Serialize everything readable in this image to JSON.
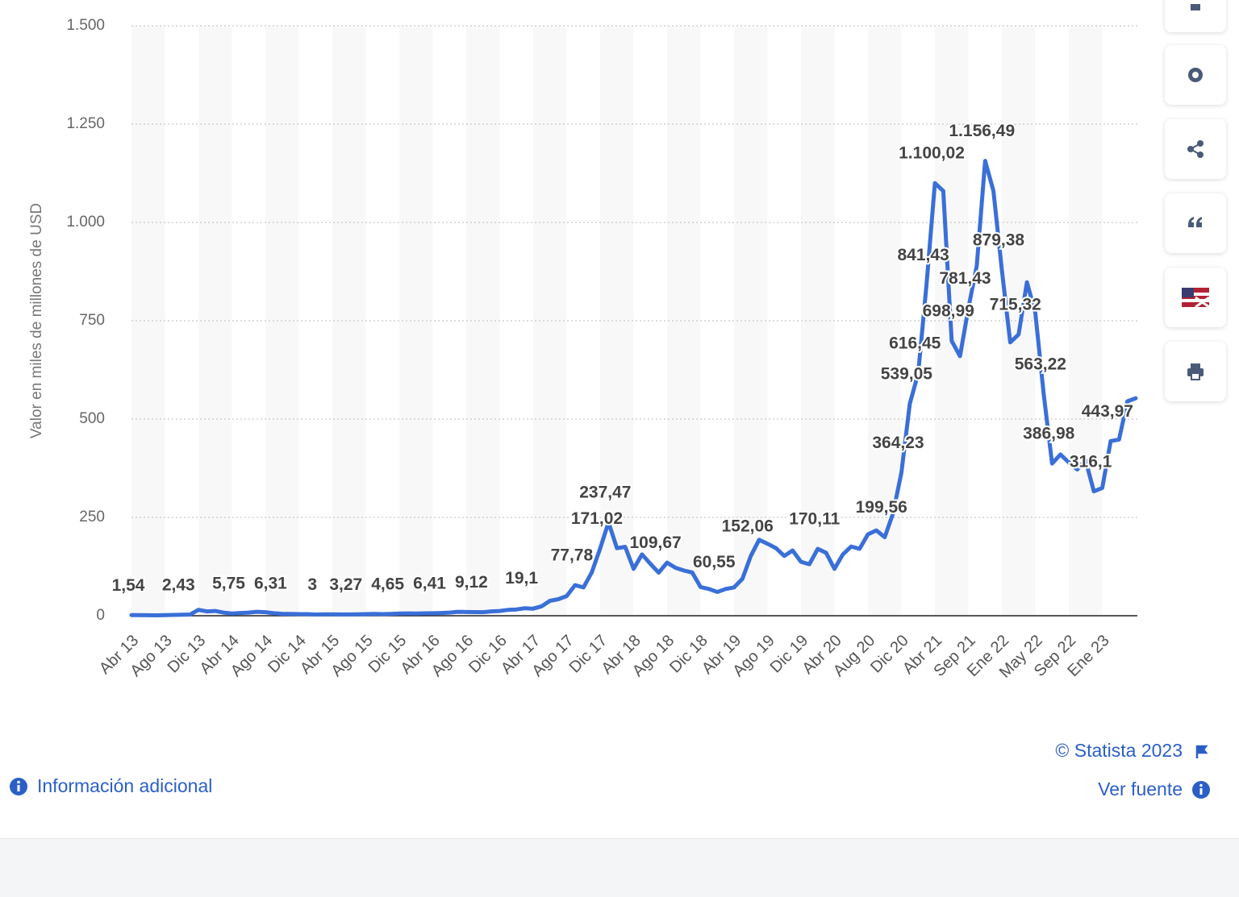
{
  "chart_data": {
    "type": "line",
    "y_axis_label": "Valor en miles de millones de USD",
    "categories": [
      "Abr 13",
      null,
      null,
      null,
      "Ago 13",
      null,
      null,
      null,
      "Dic 13",
      null,
      null,
      null,
      "Abr 14",
      null,
      null,
      null,
      "Ago 14",
      null,
      null,
      null,
      "Dic 14",
      null,
      null,
      null,
      "Abr 15",
      null,
      null,
      null,
      "Ago 15",
      null,
      null,
      null,
      "Dic 15",
      null,
      null,
      null,
      "Abr 16",
      null,
      null,
      null,
      "Ago 16",
      null,
      null,
      null,
      "Dic 16",
      null,
      null,
      null,
      "Abr 17",
      null,
      null,
      null,
      "Ago 17",
      null,
      null,
      null,
      "Dic 17",
      null,
      null,
      null,
      "Abr 18",
      null,
      null,
      null,
      "Ago 18",
      null,
      null,
      null,
      "Dic 18",
      null,
      null,
      null,
      "Abr 19",
      null,
      null,
      null,
      "Ago 19",
      null,
      null,
      null,
      "Dic 19",
      null,
      null,
      null,
      "Abr 20",
      null,
      null,
      null,
      "Aug 20",
      null,
      null,
      null,
      "Dic 20",
      null,
      null,
      null,
      "Abr 21",
      null,
      null,
      null,
      "Sep 21",
      null,
      null,
      null,
      "Ene 22",
      null,
      null,
      null,
      "May 22",
      null,
      null,
      null,
      "Sep 22",
      null,
      null,
      null,
      "Ene 23",
      null,
      null,
      null,
      null
    ],
    "values": [
      1.54,
      1.5,
      1.2,
      1.1,
      1.4,
      2.0,
      2.43,
      3,
      15,
      11,
      12,
      8,
      5.75,
      7,
      8,
      10,
      9,
      6.31,
      5,
      4.5,
      4,
      4.2,
      3,
      3.5,
      3.6,
      3.3,
      3.27,
      3.4,
      4,
      4.5,
      4.2,
      4.65,
      5.5,
      6,
      5.8,
      6.2,
      6.41,
      7,
      8,
      10,
      9.5,
      9.12,
      9,
      11,
      12,
      15,
      16,
      19.1,
      18,
      24,
      38,
      42,
      50,
      77.78,
      72,
      110,
      171.02,
      237.47,
      172,
      175,
      119,
      156,
      132,
      109.67,
      135,
      122,
      115,
      110,
      73,
      68,
      60.55,
      68,
      72,
      94,
      152.06,
      193,
      183,
      172,
      152,
      166,
      137,
      131,
      170.11,
      160,
      119,
      156,
      176,
      170,
      207,
      217,
      199.56,
      260,
      364.23,
      539.05,
      616.45,
      841.43,
      1100.02,
      1080,
      698.99,
      660,
      781.43,
      890,
      1156.49,
      1080,
      879.38,
      695,
      715.32,
      848,
      770,
      563.22,
      386.98,
      410,
      390,
      372,
      395,
      316.1,
      325,
      443.97,
      448,
      545,
      553
    ],
    "value_labels": [
      "1,54",
      null,
      null,
      null,
      null,
      null,
      "2,43",
      null,
      null,
      null,
      null,
      null,
      "5,75",
      null,
      null,
      null,
      null,
      "6,31",
      null,
      null,
      null,
      null,
      "3",
      null,
      null,
      null,
      "3,27",
      null,
      null,
      null,
      null,
      "4,65",
      null,
      null,
      null,
      null,
      "6,41",
      null,
      null,
      null,
      null,
      "9,12",
      null,
      null,
      null,
      null,
      null,
      "19,1",
      null,
      null,
      null,
      null,
      null,
      "77,78",
      null,
      null,
      "171,02",
      "237,47",
      null,
      null,
      null,
      null,
      null,
      "109,67",
      null,
      null,
      null,
      null,
      null,
      null,
      "60,55",
      null,
      null,
      null,
      "152,06",
      null,
      null,
      null,
      null,
      null,
      null,
      null,
      "170,11",
      null,
      null,
      null,
      null,
      null,
      null,
      null,
      "199,56",
      null,
      "364,23",
      "539,05",
      "616,45",
      "841,43",
      "1.100,02",
      null,
      "698,99",
      null,
      "781,43",
      null,
      "1.156,49",
      null,
      "879,38",
      null,
      "715,32",
      null,
      null,
      "563,22",
      "386,98",
      null,
      null,
      null,
      null,
      "316,1",
      null,
      "443,97",
      null,
      null,
      null
    ],
    "color": "#3a6fd8",
    "ylim": [
      0,
      1500
    ],
    "yticks": [
      0,
      250,
      500,
      750,
      {
        "value": 1000,
        "label": "1.000"
      },
      {
        "value": 1250,
        "label": "1.250"
      },
      {
        "value": 1500,
        "label": "1.500"
      }
    ],
    "grid": true,
    "copyright": "© Statista 2023",
    "more_info": "Información adicional",
    "source_link": "Ver fuente"
  }
}
